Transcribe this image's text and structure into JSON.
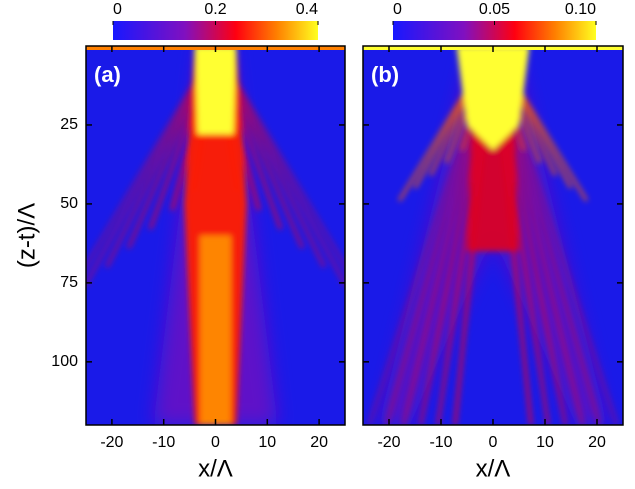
{
  "chart_data": [
    {
      "type": "heatmap",
      "label": "(a)",
      "xlabel": "x/Λ",
      "ylabel": "(z-t)/Λ",
      "xlim": [
        -25,
        25
      ],
      "xticks": [
        -20,
        -10,
        0,
        10,
        20
      ],
      "ylim": [
        0,
        120
      ],
      "yticks": [
        25,
        50,
        75,
        100
      ],
      "y_inverted": true,
      "colorbar": {
        "lim": [
          0,
          0.4
        ],
        "ticks": [
          0,
          0.2,
          0.4
        ]
      }
    },
    {
      "type": "heatmap",
      "label": "(b)",
      "xlabel": "x/Λ",
      "xlim": [
        -25,
        25
      ],
      "xticks": [
        -20,
        -10,
        0,
        10,
        20
      ],
      "ylim": [
        0,
        120
      ],
      "yticks": [
        25,
        50,
        75,
        100
      ],
      "y_inverted": true,
      "colorbar": {
        "lim": [
          0,
          0.1
        ],
        "ticks": [
          0,
          0.05,
          {
            "value": 0.1,
            "label": "0.10"
          }
        ]
      }
    }
  ]
}
